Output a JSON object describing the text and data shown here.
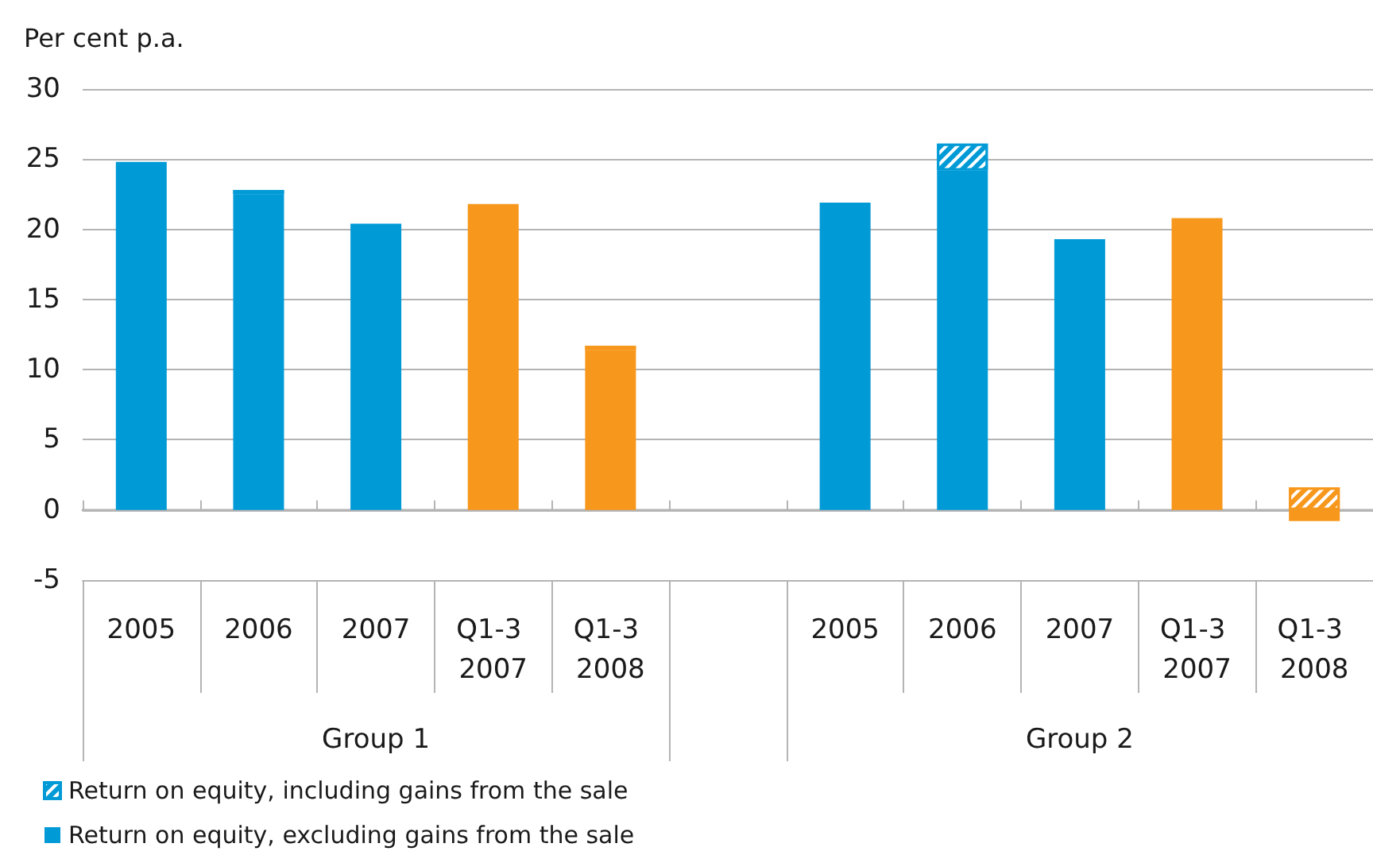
{
  "chart_data": {
    "type": "bar",
    "ylabel": "Per cent p.a.",
    "categories": [
      "2005",
      "2006",
      "2007",
      "Q1-3 2007",
      "Q1-3 2008",
      null,
      "2005",
      "2006",
      "2007",
      "Q1-3 2007",
      "Q1-3 2008"
    ],
    "series": [
      {
        "name": "Return on equity, excluding gains from the sale",
        "color": "#009ad7",
        "colors": [
          "#009ad7",
          "#009ad7",
          "#009ad7",
          "#f7971c",
          "#f7971c",
          null,
          "#009ad7",
          "#009ad7",
          "#009ad7",
          "#f7971c",
          "#f7971c"
        ],
        "values": [
          24.8,
          22.5,
          20.4,
          21.8,
          11.4,
          null,
          21.9,
          24.2,
          19.3,
          20.8,
          -0.8
        ]
      },
      {
        "name": "Return on equity, including gains from the sale",
        "color": "#009ad7",
        "colors": [
          null,
          "#009ad7",
          null,
          null,
          "#f7971c",
          null,
          null,
          "#009ad7",
          null,
          null,
          "#f7971c"
        ],
        "values": [
          null,
          0.3,
          null,
          null,
          0.3,
          null,
          null,
          1.9,
          null,
          null,
          1.6
        ]
      }
    ],
    "stacked": true,
    "ylim": [
      -5,
      30
    ],
    "yticks": [
      -5,
      0,
      5,
      10,
      15,
      20,
      25,
      30
    ],
    "grid": "y",
    "legend": "bottom left",
    "annotations": [
      "Group 1",
      "Group 2"
    ]
  }
}
